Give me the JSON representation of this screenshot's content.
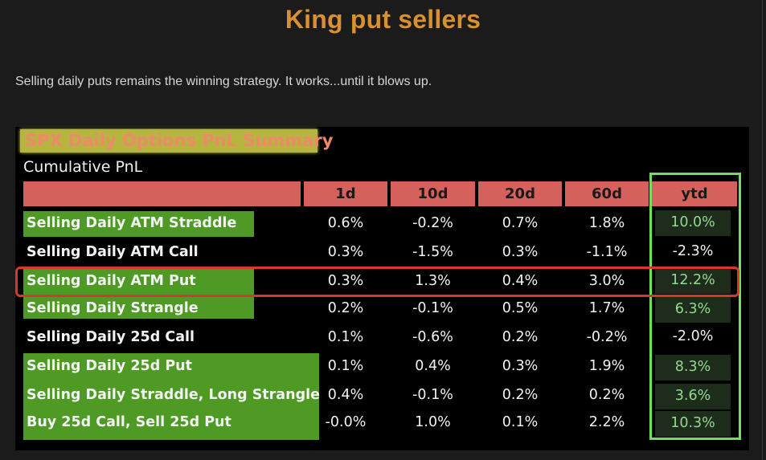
{
  "title": "King put sellers",
  "subtitle": "Selling daily puts remains the winning strategy. It works...until it blows up.",
  "table": {
    "header": "SPX Daily Options PnL Summary",
    "sub_label": "Cumulative PnL",
    "columns": [
      "1d",
      "10d",
      "20d",
      "60d",
      "ytd"
    ],
    "rows": [
      {
        "label": "Selling Daily ATM Straddle",
        "values": [
          "0.6%",
          "-0.2%",
          "0.7%",
          "1.8%",
          "10.0%"
        ],
        "label_highlight": true,
        "ytd_positive": true
      },
      {
        "label": "Selling Daily ATM Call",
        "values": [
          "0.3%",
          "-1.5%",
          "0.3%",
          "-1.1%",
          "-2.3%"
        ],
        "label_highlight": false,
        "ytd_positive": false
      },
      {
        "label": "Selling Daily ATM Put",
        "values": [
          "0.3%",
          "1.3%",
          "0.4%",
          "3.0%",
          "12.2%"
        ],
        "label_highlight": true,
        "ytd_positive": true
      },
      {
        "label": "Selling Daily Strangle",
        "values": [
          "0.2%",
          "-0.1%",
          "0.5%",
          "1.7%",
          "6.3%"
        ],
        "label_highlight": true,
        "ytd_positive": true
      },
      {
        "label": "Selling Daily 25d Call",
        "values": [
          "0.1%",
          "-0.6%",
          "0.2%",
          "-0.2%",
          "-2.0%"
        ],
        "label_highlight": false,
        "ytd_positive": false
      },
      {
        "label": "Selling Daily 25d Put",
        "values": [
          "0.1%",
          "0.4%",
          "0.3%",
          "1.9%",
          "8.3%"
        ],
        "label_highlight": true,
        "ytd_positive": true
      },
      {
        "label": "Selling Daily Straddle, Long Strangle",
        "values": [
          "0.4%",
          "-0.1%",
          "0.2%",
          "0.2%",
          "3.6%"
        ],
        "label_highlight": true,
        "ytd_positive": true
      },
      {
        "label": "Buy 25d Call, Sell 25d Put",
        "values": [
          "-0.0%",
          "1.0%",
          "0.1%",
          "2.2%",
          "10.3%"
        ],
        "label_highlight": true,
        "ytd_positive": true
      }
    ]
  },
  "colors": {
    "title": "#d99030",
    "header_bar": "#d4615c",
    "label_green": "#4e9a25",
    "ytd_box": "#6fe05a",
    "highlight_outline": "#d8382b"
  }
}
